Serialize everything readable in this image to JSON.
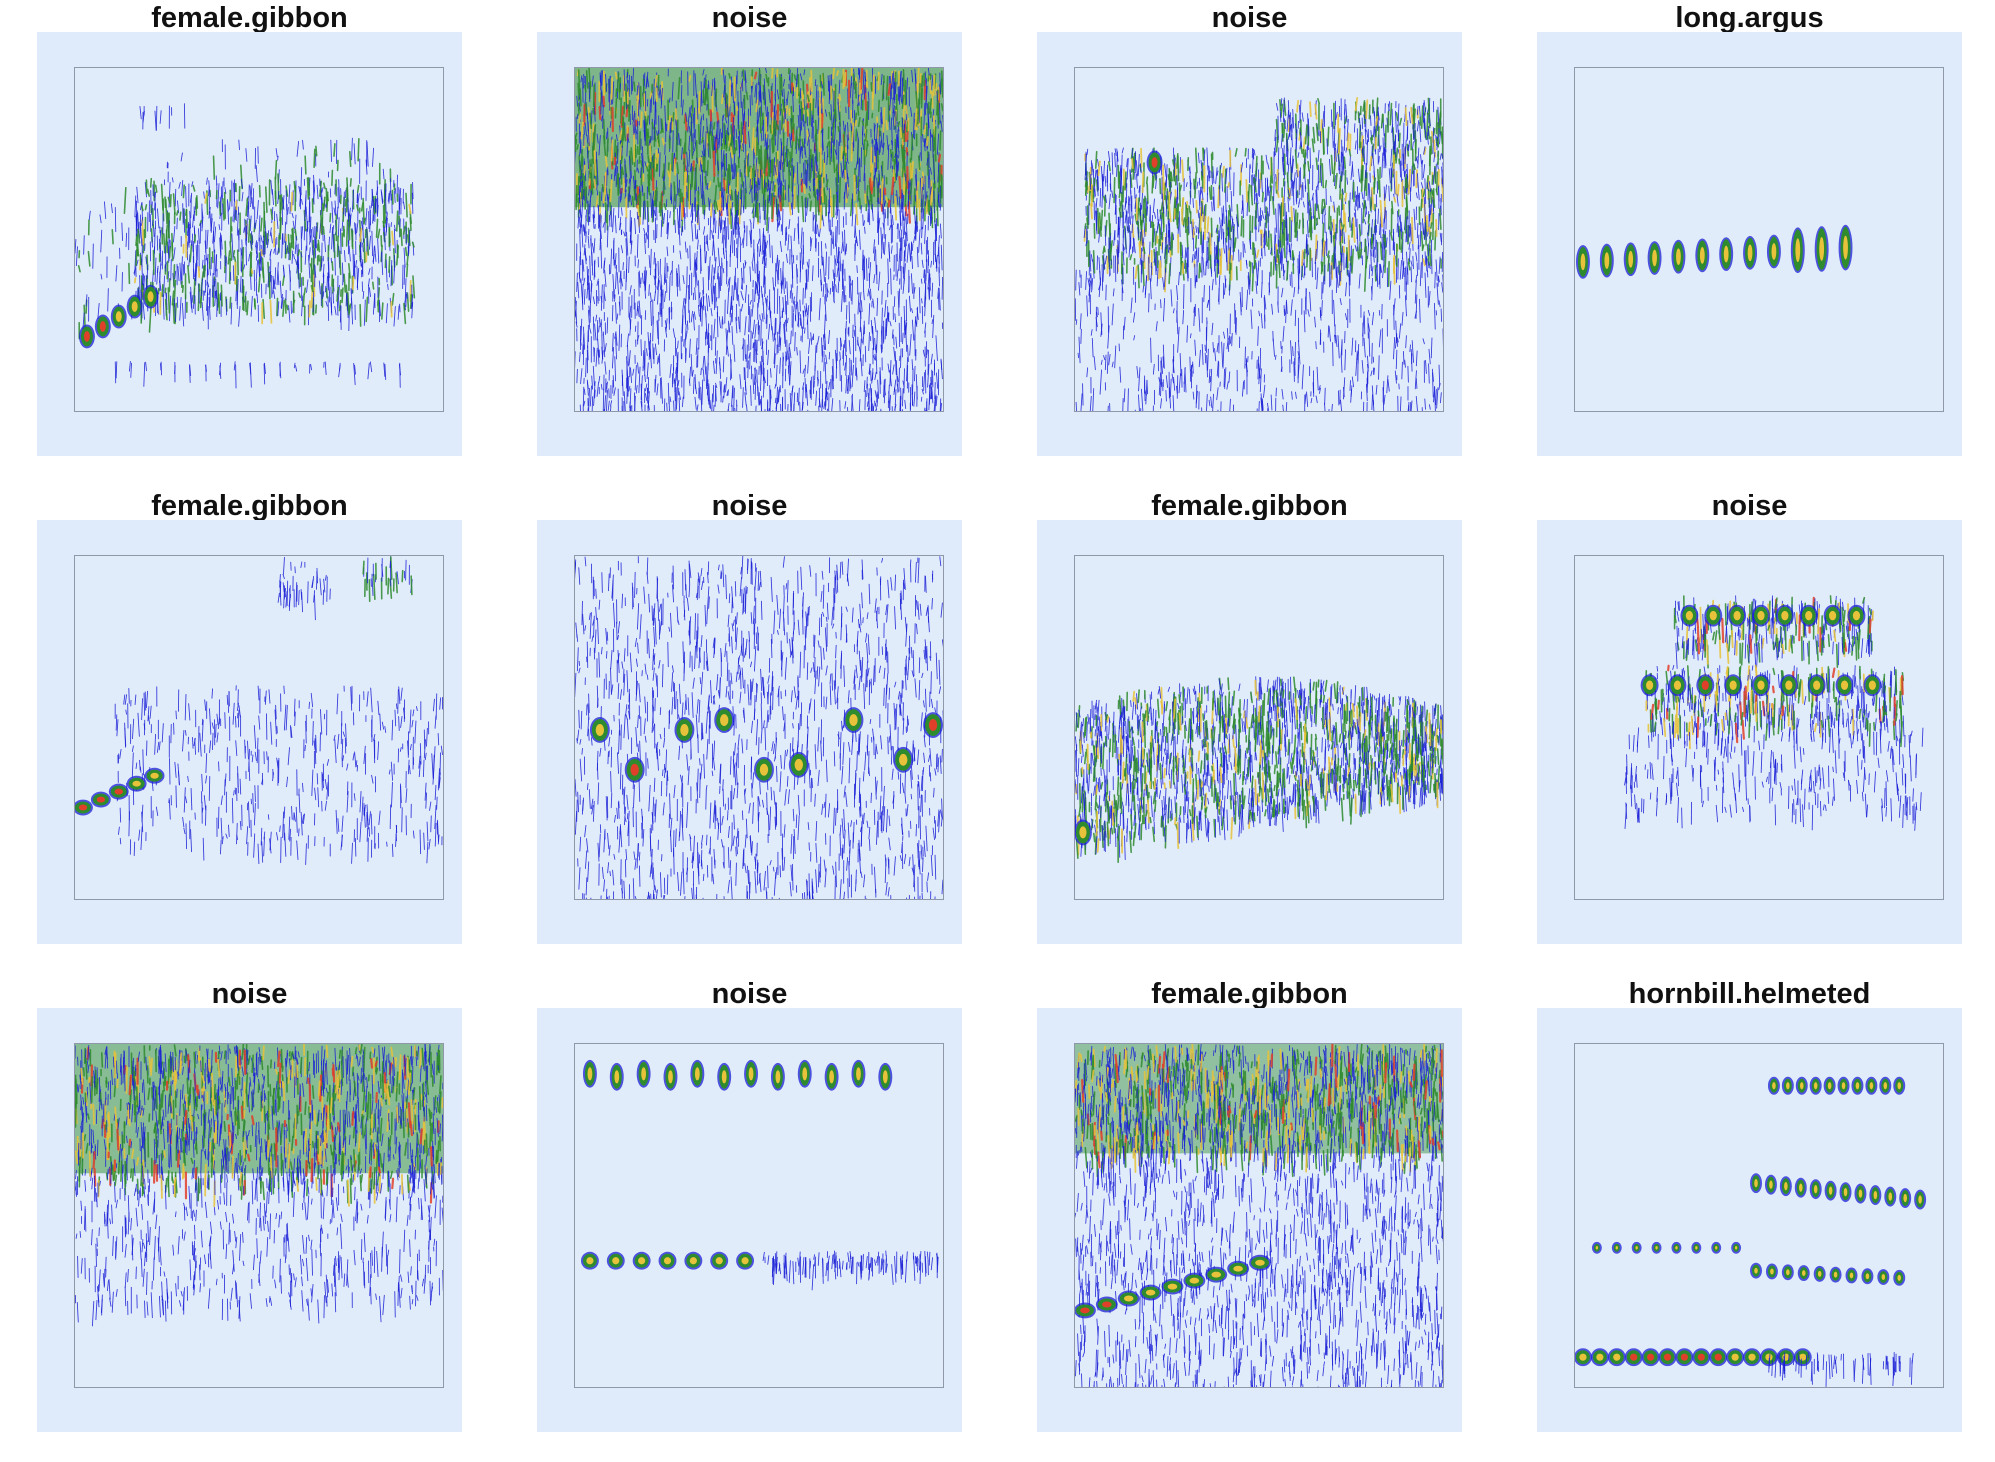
{
  "panels": [
    {
      "label": "female.gibbon",
      "pattern": "gibbon-rising"
    },
    {
      "label": "noise",
      "pattern": "dense-top-band"
    },
    {
      "label": "noise",
      "pattern": "stepped-broadband"
    },
    {
      "label": "long.argus",
      "pattern": "pulse-train"
    },
    {
      "label": "female.gibbon",
      "pattern": "gibbon-sparse"
    },
    {
      "label": "noise",
      "pattern": "scattered-blobs"
    },
    {
      "label": "female.gibbon",
      "pattern": "gibbon-dome"
    },
    {
      "label": "noise",
      "pattern": "two-layer-plateau"
    },
    {
      "label": "noise",
      "pattern": "dense-top-cloud"
    },
    {
      "label": "noise",
      "pattern": "two-row-pulses"
    },
    {
      "label": "female.gibbon",
      "pattern": "band-and-rise"
    },
    {
      "label": "hornbill.helmeted",
      "pattern": "hornbill-stack"
    }
  ],
  "colors": {
    "page_background": "#ffffff",
    "panel_background": "#dfeafb",
    "plot_background": "#e1ecfb",
    "frame": "#8f98a8",
    "low_energy": "#1a1fd6",
    "mid_energy": "#2e8b2e",
    "high_energy": "#e8c23a",
    "peak_energy": "#e0402a"
  }
}
